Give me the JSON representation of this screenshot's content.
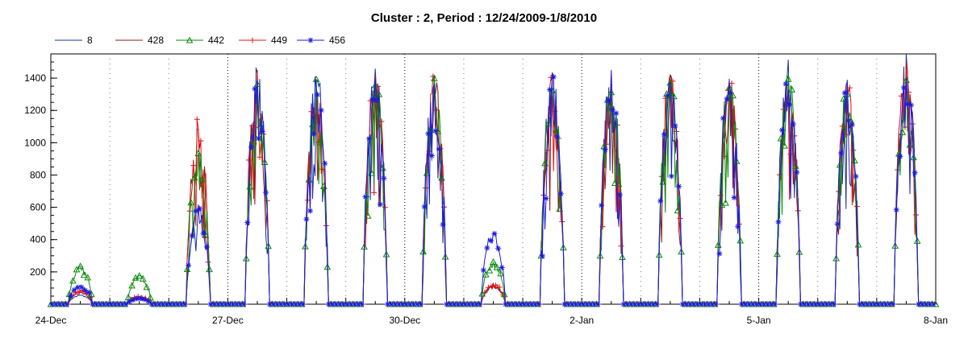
{
  "chart_data": {
    "type": "line",
    "title": "Cluster : 2, Period : 12/24/2009-1/8/2010",
    "xlabel": "",
    "ylabel": "",
    "x_tick_labels": [
      "24-Dec",
      "27-Dec",
      "30-Dec",
      "2-Jan",
      "5-Jan",
      "8-Jan"
    ],
    "x_tick_days": [
      0,
      3,
      6,
      9,
      12,
      15
    ],
    "xlim_days": [
      0,
      15
    ],
    "y_ticks": [
      200,
      400,
      600,
      800,
      1000,
      1200,
      1400
    ],
    "ylim": [
      0,
      1550
    ],
    "grid": "vertical dotted daily; heavier at 3-day labels",
    "legend_position": "top",
    "series": [
      {
        "name": "8",
        "color": "#1e2fa0",
        "marker": "none"
      },
      {
        "name": "428",
        "color": "#8b1a1a",
        "marker": "none"
      },
      {
        "name": "442",
        "color": "#0a8a0a",
        "marker": "triangle"
      },
      {
        "name": "449",
        "color": "#e01010",
        "marker": "plus"
      },
      {
        "name": "456",
        "color": "#1a1ae0",
        "marker": "star"
      }
    ],
    "daily_peaks": {
      "day_index": [
        0,
        1,
        2,
        3,
        4,
        5,
        6,
        7,
        8,
        9,
        10,
        11,
        12,
        13,
        14
      ],
      "8": [
        60,
        30,
        620,
        1480,
        1500,
        1460,
        1440,
        120,
        1430,
        1460,
        1440,
        1420,
        1540,
        1400,
        1550
      ],
      "428": [
        80,
        40,
        1100,
        1400,
        1380,
        1420,
        1420,
        120,
        1360,
        1450,
        1450,
        1400,
        1440,
        1380,
        1490
      ],
      "442": [
        240,
        180,
        960,
        1380,
        1400,
        1400,
        1400,
        270,
        1380,
        1420,
        1430,
        1430,
        1430,
        1380,
        1420
      ],
      "449": [
        90,
        50,
        1160,
        1470,
        1420,
        1470,
        1430,
        130,
        1420,
        1480,
        1460,
        1420,
        1460,
        1410,
        1500
      ],
      "456": [
        120,
        40,
        600,
        1410,
        1440,
        1450,
        1420,
        460,
        1440,
        1480,
        1440,
        1420,
        1420,
        1400,
        1440
      ]
    }
  }
}
